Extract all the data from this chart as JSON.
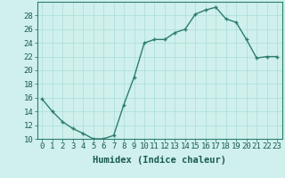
{
  "x": [
    0,
    1,
    2,
    3,
    4,
    5,
    6,
    7,
    8,
    9,
    10,
    11,
    12,
    13,
    14,
    15,
    16,
    17,
    18,
    19,
    20,
    21,
    22,
    23
  ],
  "y": [
    15.8,
    14.0,
    12.5,
    11.5,
    10.8,
    10.0,
    10.0,
    10.5,
    15.0,
    19.0,
    24.0,
    24.5,
    24.5,
    25.5,
    26.0,
    28.2,
    28.8,
    29.2,
    27.5,
    27.0,
    24.5,
    21.8,
    22.0,
    22.0
  ],
  "line_color": "#2e7d6e",
  "marker": "+",
  "bg_color": "#cff0ec",
  "grid_color": "#aaddd8",
  "xlabel": "Humidex (Indice chaleur)",
  "ylim": [
    10,
    30
  ],
  "xlim_min": -0.5,
  "xlim_max": 23.5,
  "yticks": [
    10,
    12,
    14,
    16,
    18,
    20,
    22,
    24,
    26,
    28
  ],
  "xticks": [
    0,
    1,
    2,
    3,
    4,
    5,
    6,
    7,
    8,
    9,
    10,
    11,
    12,
    13,
    14,
    15,
    16,
    17,
    18,
    19,
    20,
    21,
    22,
    23
  ],
  "xlabel_fontsize": 7.5,
  "tick_fontsize": 6.5,
  "linewidth": 1.0,
  "markersize": 3.5,
  "markeredgewidth": 1.0
}
